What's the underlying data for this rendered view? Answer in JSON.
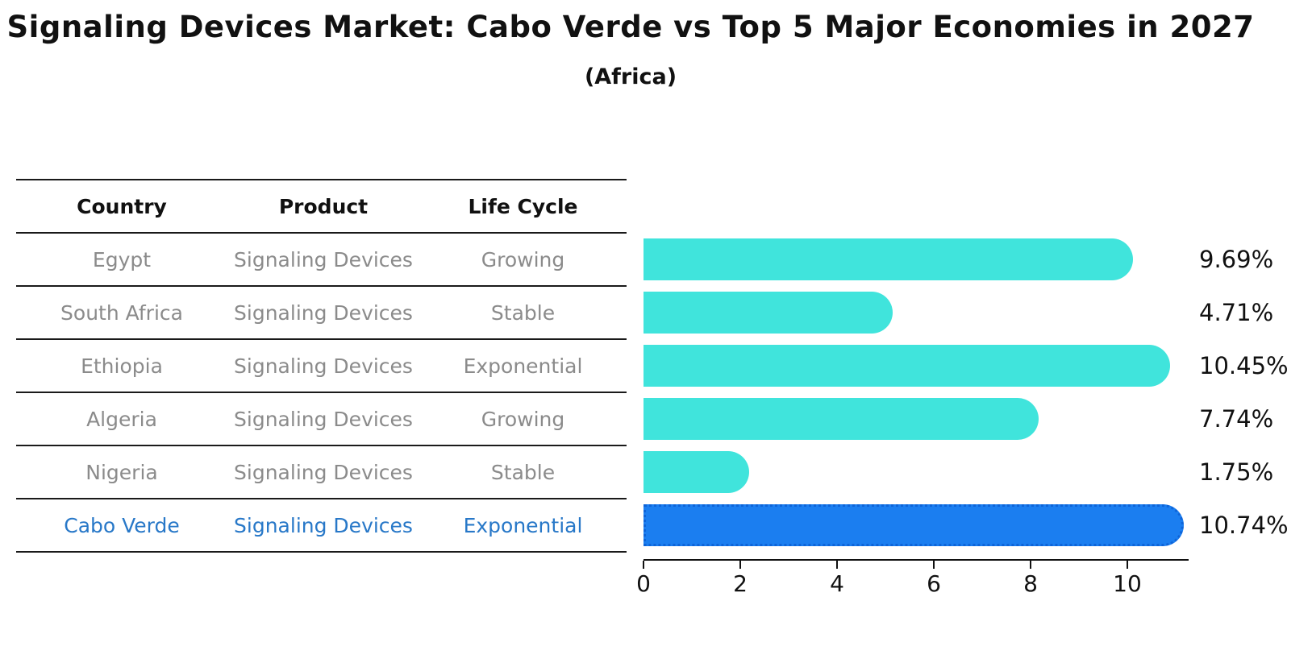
{
  "title": "Signaling Devices Market: Cabo Verde vs Top 5 Major Economies in 2027",
  "subtitle": "(Africa)",
  "colors": {
    "bar_default": "#40e4dc",
    "bar_highlight": "#1b7ef0",
    "bar_highlight_edge": "#0e64d8",
    "highlight_text": "#2878c8",
    "row_text": "#8b8b8b",
    "heading_text": "#111111",
    "axis": "#111111",
    "background": "#ffffff"
  },
  "table": {
    "headers": [
      "Country",
      "Product",
      "Life Cycle"
    ],
    "rows": [
      {
        "country": "Egypt",
        "product": "Signaling Devices",
        "life_cycle": "Growing",
        "highlight": false
      },
      {
        "country": "South Africa",
        "product": "Signaling Devices",
        "life_cycle": "Stable",
        "highlight": false
      },
      {
        "country": "Ethiopia",
        "product": "Signaling Devices",
        "life_cycle": "Exponential",
        "highlight": false
      },
      {
        "country": "Algeria",
        "product": "Signaling Devices",
        "life_cycle": "Growing",
        "highlight": false
      },
      {
        "country": "Nigeria",
        "product": "Signaling Devices",
        "life_cycle": "Stable",
        "highlight": false
      },
      {
        "country": "Cabo Verde",
        "product": "Signaling Devices",
        "life_cycle": "Exponential",
        "highlight": true
      }
    ]
  },
  "chart_data": {
    "type": "bar",
    "orientation": "horizontal",
    "title": "Signaling Devices Market: Cabo Verde vs Top 5 Major Economies in 2027",
    "subtitle": "(Africa)",
    "categories": [
      "Egypt",
      "South Africa",
      "Ethiopia",
      "Algeria",
      "Nigeria",
      "Cabo Verde"
    ],
    "values": [
      9.69,
      4.71,
      10.45,
      7.74,
      1.75,
      10.74
    ],
    "value_labels": [
      "9.69%",
      "4.71%",
      "10.45%",
      "7.74%",
      "1.75%",
      "10.74%"
    ],
    "highlight_index": 5,
    "xlabel": "",
    "ylabel": "",
    "x_ticks": [
      0,
      2,
      4,
      6,
      8,
      10
    ],
    "xlim": [
      0,
      11.25
    ],
    "grid": false,
    "legend": false
  }
}
